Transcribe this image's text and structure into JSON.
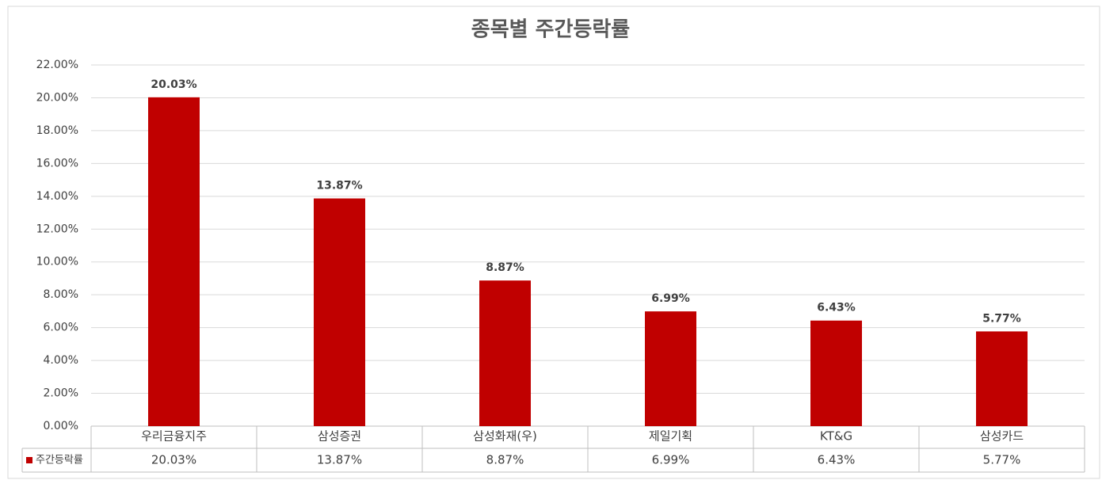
{
  "chart_data": {
    "type": "bar",
    "title": "종목별 주간등락률",
    "categories": [
      "우리금융지주",
      "삼성증권",
      "삼성화재(우)",
      "제일기획",
      "KT&G",
      "삼성카드"
    ],
    "series": [
      {
        "name": "주간등락률",
        "color": "#c00000",
        "values": [
          20.03,
          13.87,
          8.87,
          6.99,
          6.43,
          5.77
        ],
        "value_labels": [
          "20.03%",
          "13.87%",
          "8.87%",
          "6.99%",
          "6.43%",
          "5.77%"
        ]
      }
    ],
    "ylim": [
      0,
      22
    ],
    "yticks": [
      {
        "value": 0,
        "label": "0.00%"
      },
      {
        "value": 2,
        "label": "2.00%"
      },
      {
        "value": 4,
        "label": "4.00%"
      },
      {
        "value": 6,
        "label": "6.00%"
      },
      {
        "value": 8,
        "label": "8.00%"
      },
      {
        "value": 10,
        "label": "10.00%"
      },
      {
        "value": 12,
        "label": "12.00%"
      },
      {
        "value": 14,
        "label": "14.00%"
      },
      {
        "value": 16,
        "label": "16.00%"
      },
      {
        "value": 18,
        "label": "18.00%"
      },
      {
        "value": 20,
        "label": "20.00%"
      },
      {
        "value": 22,
        "label": "22.00%"
      }
    ],
    "grid": true,
    "data_table": true
  }
}
